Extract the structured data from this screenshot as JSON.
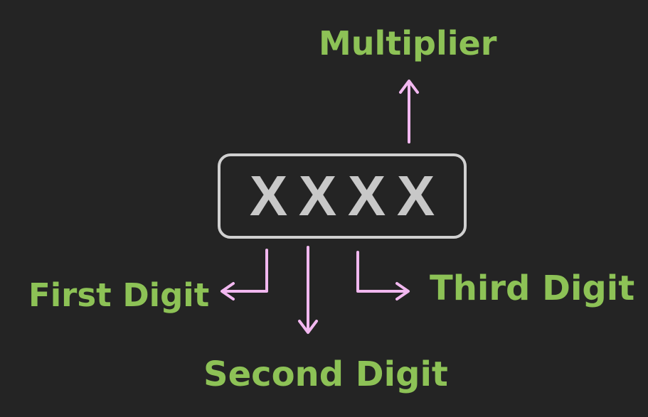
{
  "colors": {
    "background": "#242424",
    "label_text": "#8dc256",
    "arrow": "#f2b8f0",
    "box_border": "#d0d0d0",
    "digit_text": "#c8c8c8"
  },
  "code": {
    "digits": [
      "X",
      "X",
      "X",
      "X"
    ]
  },
  "labels": {
    "multiplier": "Multiplier",
    "first_digit": "First Digit",
    "second_digit": "Second Digit",
    "third_digit": "Third Digit"
  }
}
